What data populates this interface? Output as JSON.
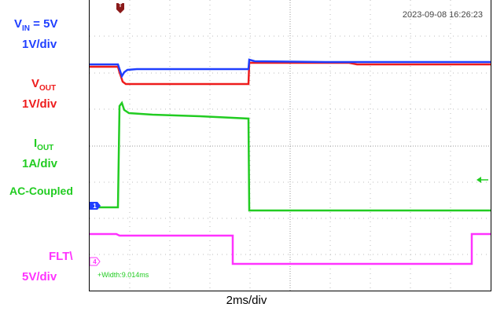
{
  "channels": {
    "vin": {
      "name": "V",
      "sub": "IN",
      "value_text": " = 5V",
      "scale": "1V/div",
      "color": "#1f3fff"
    },
    "vout": {
      "name": "V",
      "sub": "OUT",
      "scale": "1V/div",
      "color": "#ee1c1c"
    },
    "iout": {
      "name": "I",
      "sub": "OUT",
      "scale": "1A/div",
      "coupling": "AC-Coupled",
      "color": "#22cc22"
    },
    "flt": {
      "name": "FLT\\",
      "scale": "5V/div",
      "color": "#ff33ff"
    }
  },
  "scope": {
    "timestamp": "2023-09-08 16:26:23",
    "width_readout": "+Width:9.014ms",
    "timebase": "2ms/div",
    "marker_ch1": "1",
    "marker_ch4": "4",
    "trigger_marker": "T"
  }
}
